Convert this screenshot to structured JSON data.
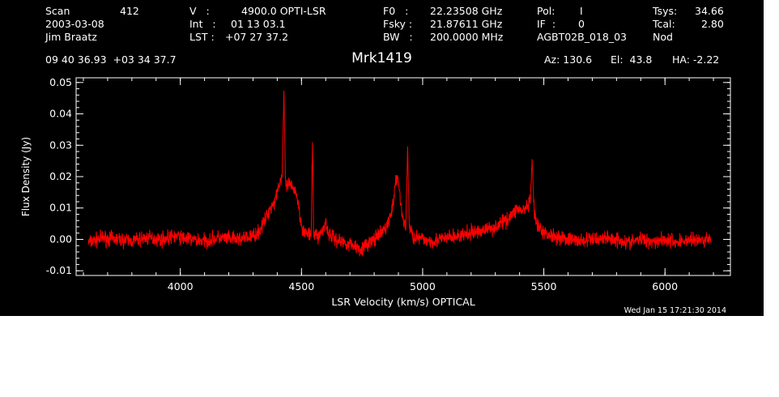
{
  "header": {
    "row1": [
      {
        "label": "Scan",
        "value": "412"
      },
      {
        "label": "V   :",
        "value": "4900.0 OPTI-LSR"
      },
      {
        "label": "F0   :",
        "value": "22.23508 GHz"
      },
      {
        "label": "Pol:",
        "value": "I"
      },
      {
        "label": "Tsys:",
        "value": "34.66"
      }
    ],
    "row2": [
      {
        "text": "2003-03-08"
      },
      {
        "label": "Int   :",
        "value": "01 13 03.1"
      },
      {
        "label": "Fsky :",
        "value": "21.87611 GHz"
      },
      {
        "label": "IF  :",
        "value": "0"
      },
      {
        "label": "Tcal:",
        "value": "2.80"
      }
    ],
    "row3": [
      {
        "text": "Jim Braatz"
      },
      {
        "label": "LST :",
        "value": "+07 27 37.2"
      },
      {
        "label": "BW   :",
        "value": "200.0000 MHz"
      },
      {
        "text": "AGBT02B_018_03"
      },
      {
        "text": "Nod"
      }
    ],
    "coords": "09 40 36.93  +03 34 37.7",
    "source": "Mrk1419",
    "az": "Az: 130.6",
    "el": "El:  43.8",
    "ha": "HA: -2.22",
    "timestamp": "Wed Jan 15 17:21:30 2014"
  },
  "colors": {
    "background": "#000000",
    "axes": "#ffffff",
    "trace": "#ff0000"
  },
  "chart_data": {
    "type": "line",
    "title": "Mrk1419",
    "xlabel": "LSR Velocity (km/s) OPTICAL",
    "ylabel": "Flux Density (Jy)",
    "xlim": [
      3570,
      6270
    ],
    "ylim": [
      -0.0115,
      0.0515
    ],
    "xticks": [
      {
        "value": 4000,
        "label": "4000"
      },
      {
        "value": 4500,
        "label": "4500"
      },
      {
        "value": 5000,
        "label": "5000"
      },
      {
        "value": 5500,
        "label": "5500"
      },
      {
        "value": 6000,
        "label": "6000"
      }
    ],
    "yticks": [
      {
        "value": -0.01,
        "label": "-0.01"
      },
      {
        "value": 0.0,
        "label": "0.00"
      },
      {
        "value": 0.01,
        "label": "0.01"
      },
      {
        "value": 0.02,
        "label": "0.02"
      },
      {
        "value": 0.03,
        "label": "0.03"
      },
      {
        "value": 0.04,
        "label": "0.04"
      },
      {
        "value": 0.05,
        "label": "0.05"
      }
    ],
    "xminor_step": 100,
    "yminor_step": 0.002,
    "grid": false,
    "series": [
      {
        "x": [
          3620,
          3680,
          3740,
          3800,
          3860,
          3920,
          3980,
          4040,
          4100,
          4160,
          4220,
          4280,
          4320,
          4350,
          4370,
          4390,
          4400,
          4410,
          4420,
          4428,
          4433,
          4438,
          4445,
          4455,
          4465,
          4475,
          4485,
          4495,
          4505,
          4520,
          4540,
          4545,
          4550,
          4570,
          4590,
          4600,
          4610,
          4640,
          4680,
          4720,
          4750,
          4780,
          4820,
          4850,
          4870,
          4880,
          4890,
          4897,
          4905,
          4915,
          4930,
          4938,
          4945,
          4960,
          5000,
          5050,
          5100,
          5150,
          5200,
          5250,
          5300,
          5340,
          5370,
          5390,
          5410,
          5430,
          5445,
          5452,
          5460,
          5475,
          5500,
          5550,
          5600,
          5650,
          5700,
          5750,
          5800,
          5850,
          5900,
          5950,
          6000,
          6050,
          6100,
          6150,
          6190
        ],
        "y": [
          -0.001,
          0.0005,
          0.0,
          -0.0005,
          0.0005,
          0.0,
          0.001,
          0.0,
          -0.0005,
          0.0005,
          0.0,
          0.0005,
          0.002,
          0.006,
          0.01,
          0.012,
          0.016,
          0.018,
          0.02,
          0.047,
          0.02,
          0.016,
          0.018,
          0.017,
          0.016,
          0.016,
          0.012,
          0.007,
          0.003,
          0.002,
          0.001,
          0.031,
          0.002,
          0.001,
          0.003,
          0.006,
          0.002,
          0.0,
          -0.001,
          -0.002,
          -0.003,
          -0.001,
          0.001,
          0.004,
          0.008,
          0.013,
          0.018,
          0.021,
          0.015,
          0.008,
          0.003,
          0.03,
          0.004,
          0.001,
          0.0,
          -0.0005,
          0.0005,
          0.001,
          0.002,
          0.003,
          0.004,
          0.006,
          0.008,
          0.01,
          0.009,
          0.01,
          0.012,
          0.026,
          0.008,
          0.004,
          0.002,
          0.001,
          0.0,
          -0.0005,
          0.0,
          0.0005,
          0.0,
          -0.001,
          0.0,
          -0.0005,
          0.0,
          -0.001,
          0.0,
          -0.0005,
          0.0005
        ],
        "noise": 0.0026
      }
    ]
  }
}
